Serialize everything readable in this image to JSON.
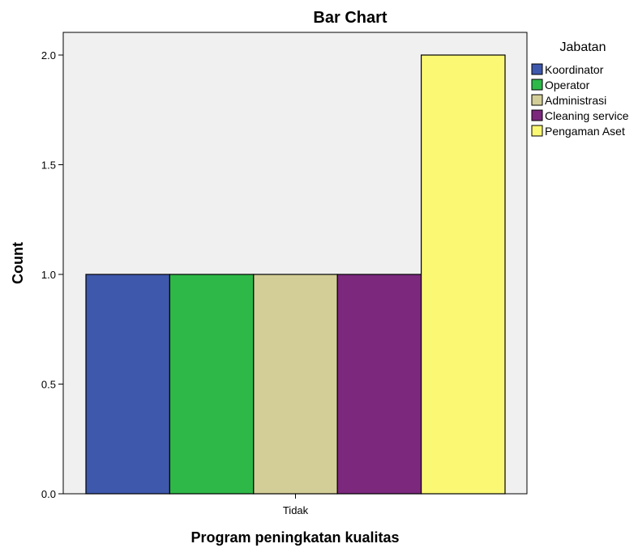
{
  "chart_data": {
    "type": "bar",
    "title": "Bar Chart",
    "xlabel": "Program peningkatan kualitas",
    "ylabel": "Count",
    "categories": [
      "Tidak"
    ],
    "ylim": [
      0,
      2.0
    ],
    "yticks": [
      "0.0",
      "0.5",
      "1.0",
      "1.5",
      "2.0"
    ],
    "grid": false,
    "legend": {
      "title": "Jabatan",
      "placement": "right"
    },
    "series": [
      {
        "name": "Koordinator",
        "values": [
          1
        ],
        "color": "#3e58ac"
      },
      {
        "name": "Operator",
        "values": [
          1
        ],
        "color": "#2eb848"
      },
      {
        "name": "Administrasi",
        "values": [
          1
        ],
        "color": "#d3ce97"
      },
      {
        "name": "Cleaning service",
        "values": [
          1
        ],
        "color": "#7b287d"
      },
      {
        "name": "Pengaman Aset",
        "values": [
          2
        ],
        "color": "#fbf873"
      }
    ],
    "plot_background": "#f0f0f0"
  }
}
